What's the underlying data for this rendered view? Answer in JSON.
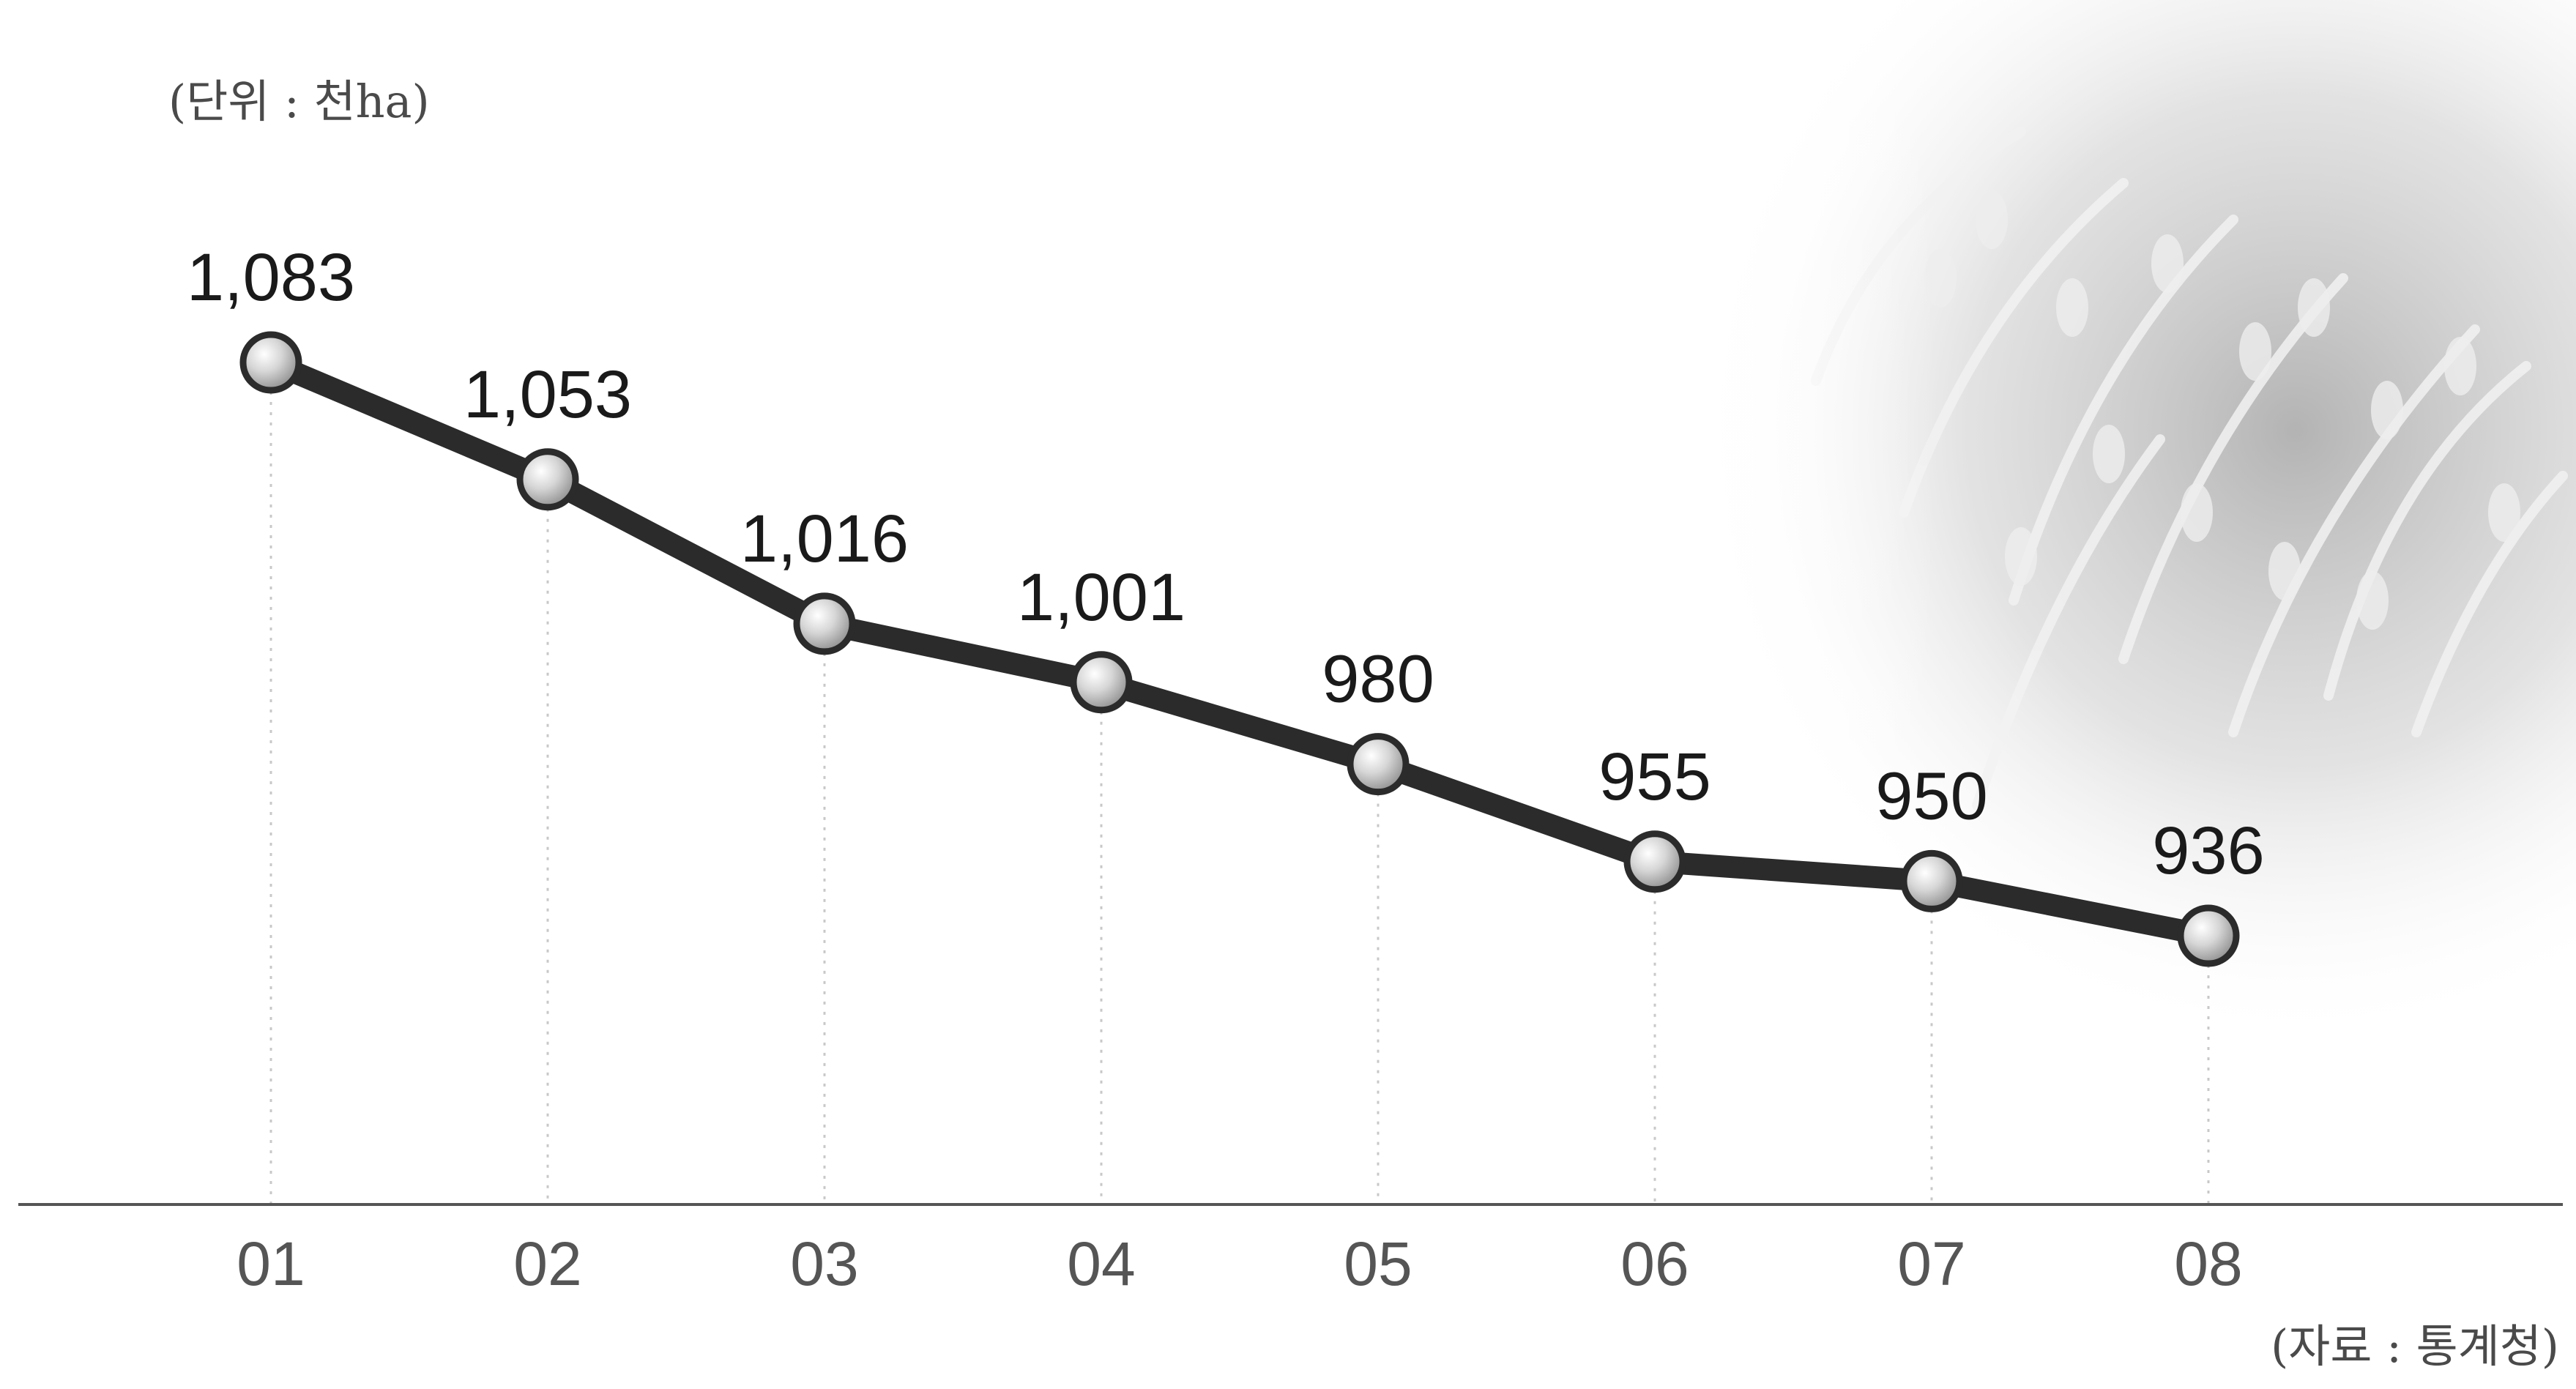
{
  "unit_label": "(단위 : 천ha)",
  "source_label": "(자료 : 통계청)",
  "chart_data": {
    "type": "line",
    "categories": [
      "01",
      "02",
      "03",
      "04",
      "05",
      "06",
      "07",
      "08"
    ],
    "values": [
      1083,
      1053,
      1016,
      1001,
      980,
      955,
      950,
      936
    ],
    "data_labels": [
      "1,083",
      "1,053",
      "1,016",
      "1,001",
      "980",
      "955",
      "950",
      "936"
    ],
    "ylim": [
      860,
      1110
    ],
    "grid": "vertical-dotted",
    "background_image": "rice-plant-photo",
    "colors": {
      "line": "#2b2b2b",
      "marker": "#d0d0d0",
      "marker_edge": "#2b2b2b",
      "axis": "#555555",
      "grid": "#c8c8c8"
    }
  }
}
